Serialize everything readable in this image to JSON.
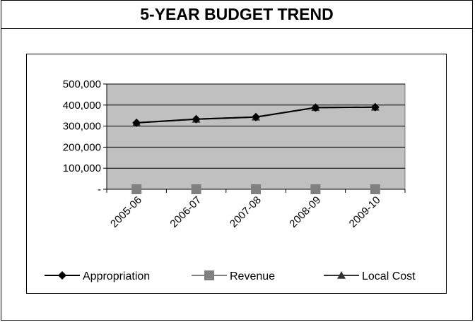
{
  "header": {
    "title": "5-YEAR BUDGET TREND"
  },
  "chart_data": {
    "type": "line",
    "categories": [
      "2005-06",
      "2006-07",
      "2007-08",
      "2008-09",
      "2009-10"
    ],
    "y_ticks": [
      "-",
      "100,000",
      "200,000",
      "300,000",
      "400,000",
      "500,000"
    ],
    "ylim": [
      0,
      500000
    ],
    "grid": true,
    "legend_position": "bottom",
    "plot_background": "#c0c0c0",
    "series": [
      {
        "name": "Appropriation",
        "values": [
          316000,
          333000,
          343000,
          388000,
          390000
        ],
        "marker": "diamond",
        "color": "#000000"
      },
      {
        "name": "Revenue",
        "values": [
          0,
          0,
          0,
          0,
          0
        ],
        "marker": "square",
        "color": "#808080"
      },
      {
        "name": "Local Cost",
        "values": [
          316000,
          333000,
          343000,
          388000,
          390000
        ],
        "marker": "triangle",
        "color": "#333333"
      }
    ]
  }
}
